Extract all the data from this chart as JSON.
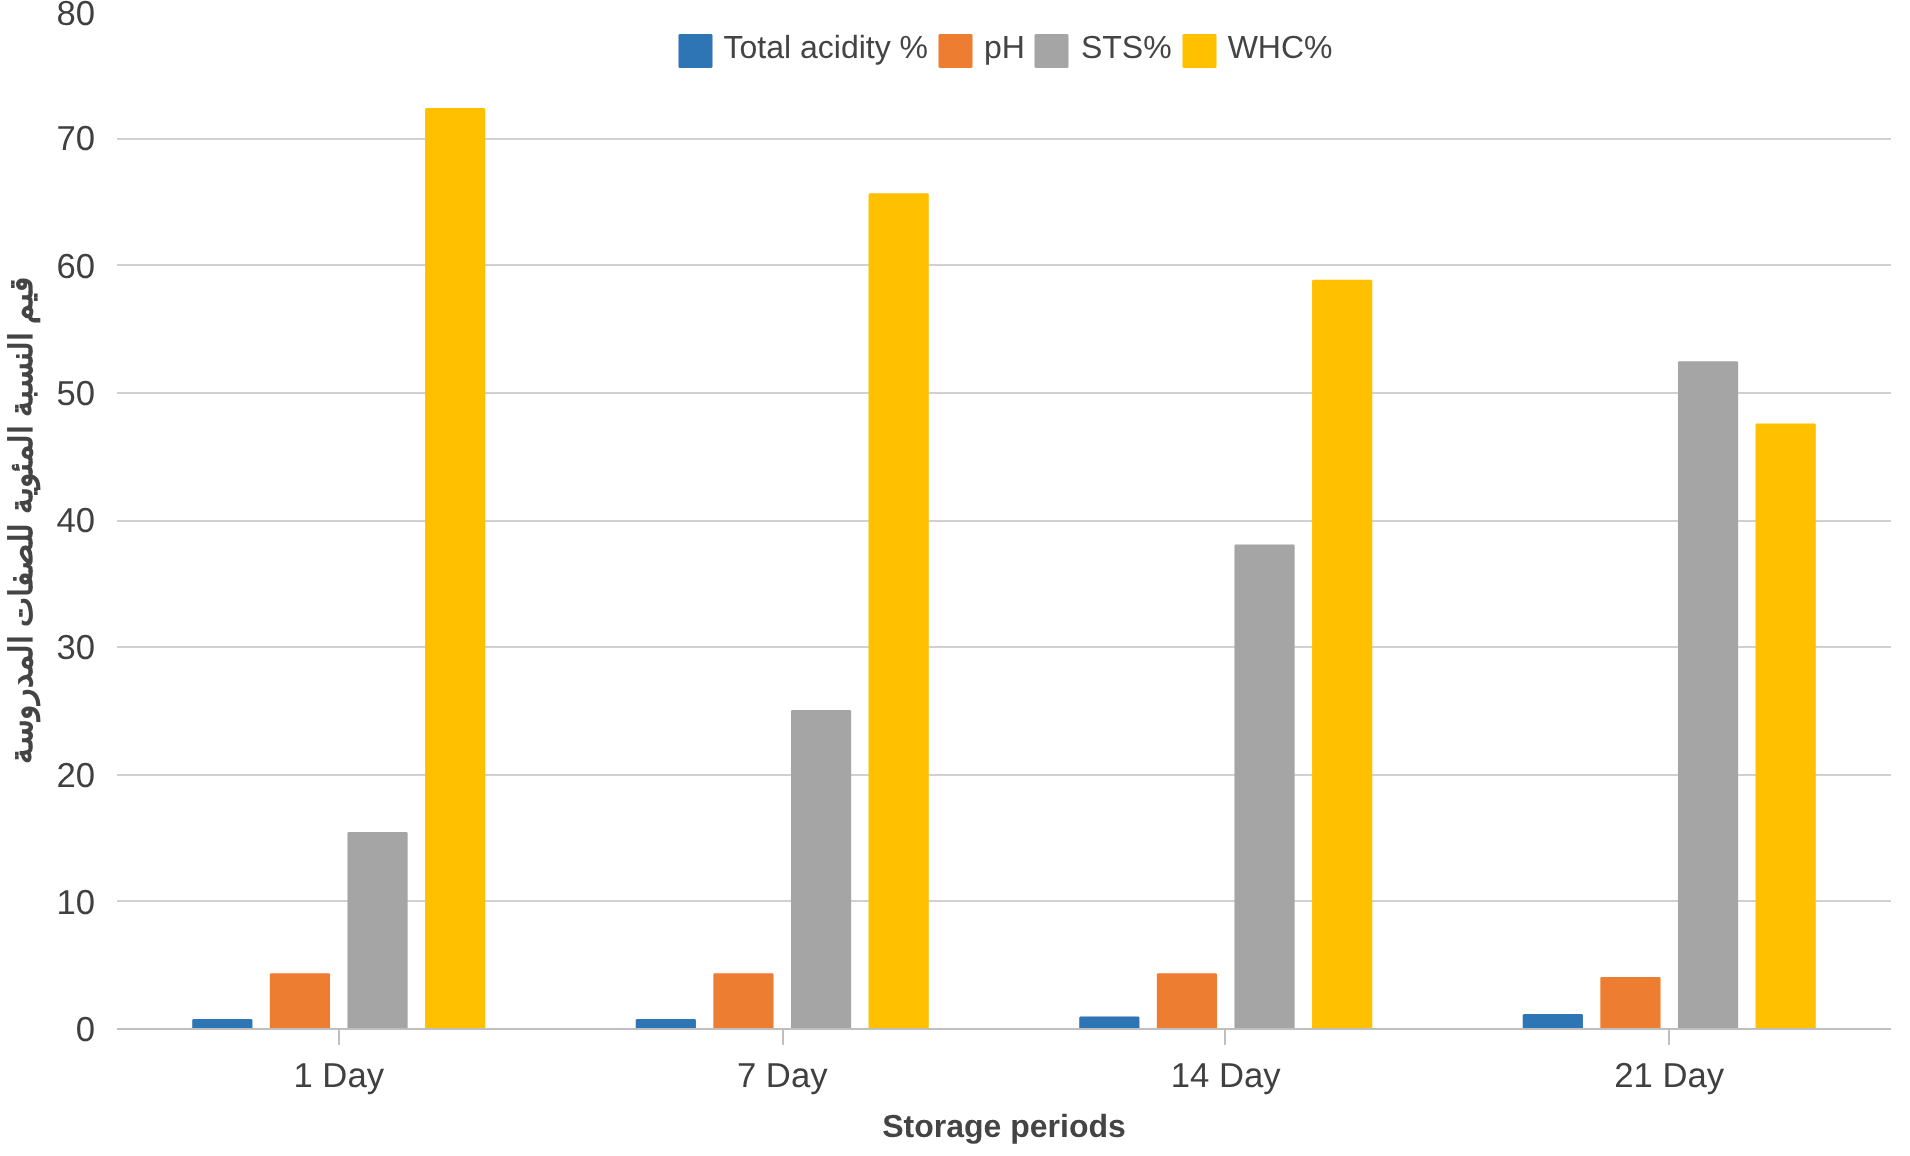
{
  "chart_data": {
    "type": "bar",
    "xlabel": "Storage periods",
    "ylabel": "قيم النسبة المئوية للصفات المدروسة",
    "categories": [
      "1 Day",
      "7 Day",
      "14 Day",
      "21 Day"
    ],
    "series": [
      {
        "name": "Total acidity %",
        "color": "#2e75b6",
        "values": [
          0.7,
          0.7,
          0.9,
          1.1
        ]
      },
      {
        "name": "pH",
        "color": "#ed7d31",
        "values": [
          4.3,
          4.3,
          4.3,
          4.0
        ]
      },
      {
        "name": "STS%",
        "color": "#a5a5a5",
        "values": [
          15.4,
          25.0,
          38.0,
          52.4
        ]
      },
      {
        "name": "WHC%",
        "color": "#ffc000",
        "values": [
          72.3,
          65.6,
          58.8,
          47.5
        ]
      }
    ],
    "ylim": [
      0,
      80
    ],
    "yticks": [
      0,
      10,
      20,
      30,
      40,
      50,
      60,
      70,
      80
    ],
    "grid": "y",
    "legend": "top"
  }
}
